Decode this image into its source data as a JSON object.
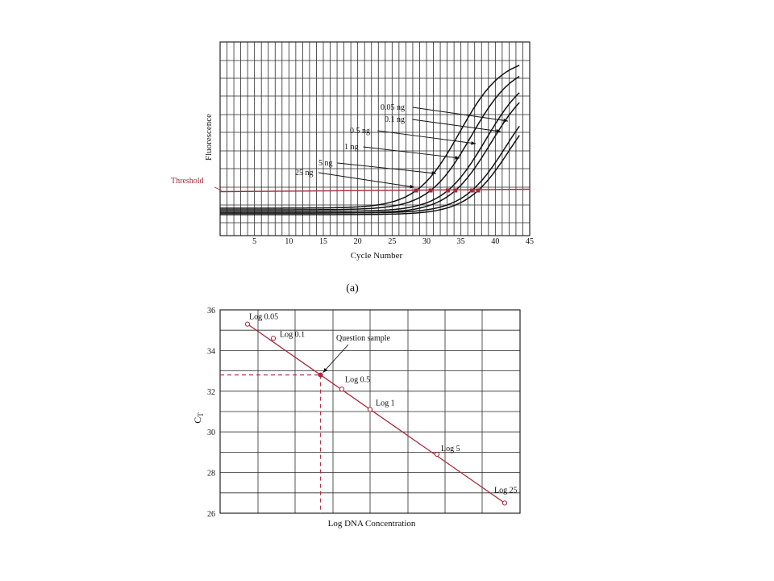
{
  "colors": {
    "accent": "#a8283a",
    "ink": "#111111",
    "grid": "#2a2a2a"
  },
  "chart_data": [
    {
      "type": "line",
      "panel_label": "(a)",
      "xlabel": "Cycle Number",
      "ylabel": "Fluorescence",
      "x_ticks": [
        "5",
        "10",
        "15",
        "20",
        "25",
        "30",
        "35",
        "40",
        "45"
      ],
      "xlim": [
        0,
        45
      ],
      "threshold_label": "Threshold",
      "series": [
        {
          "name": "25 ng",
          "ct": 28.5
        },
        {
          "name": "5 ng",
          "ct": 30.6
        },
        {
          "name": "1 ng",
          "ct": 33.1
        },
        {
          "name": "0.5 ng",
          "ct": 34.2
        },
        {
          "name": "0.1 ng",
          "ct": 36.6
        },
        {
          "name": "0.05 ng",
          "ct": 37.5
        }
      ]
    },
    {
      "type": "scatter",
      "xlabel": "Log DNA Concentration",
      "ylabel": "C",
      "ylabel_subscript": "T",
      "y_ticks": [
        "26",
        "28",
        "30",
        "32",
        "34",
        "36"
      ],
      "ylim": [
        26,
        36
      ],
      "points": [
        {
          "label": "Log 0.05",
          "y": 35.3
        },
        {
          "label": "Log 0.1",
          "y": 34.6
        },
        {
          "label": "Log 0.5",
          "y": 32.1
        },
        {
          "label": "Log 1",
          "y": 31.1
        },
        {
          "label": "Log 5",
          "y": 28.9
        },
        {
          "label": "Log 25",
          "y": 26.5
        }
      ],
      "question_sample": {
        "label": "Question sample",
        "y": 32.8
      }
    }
  ]
}
